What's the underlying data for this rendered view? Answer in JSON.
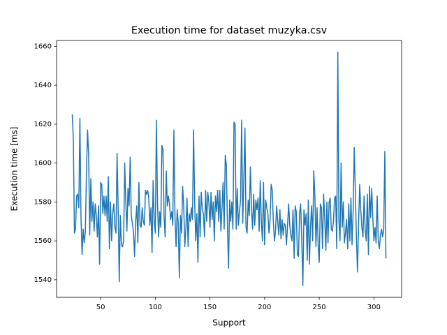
{
  "chart_data": {
    "type": "line",
    "title": "Execution time for dataset muzyka.csv",
    "x_label": "Support",
    "y_label": "Execution time [ms]",
    "color": "#1f77b4",
    "grid": false,
    "xlim": [
      9.65,
      325.35
    ],
    "ylim": [
      1531,
      1663
    ],
    "xticks": [
      50,
      100,
      150,
      200,
      250,
      300
    ],
    "yticks": [
      1540,
      1560,
      1580,
      1600,
      1620,
      1640,
      1660
    ],
    "x": [
      24,
      25,
      26,
      27,
      28,
      29,
      30,
      31,
      32,
      33,
      34,
      35,
      36,
      37,
      38,
      39,
      40,
      41,
      42,
      43,
      44,
      45,
      46,
      47,
      48,
      49,
      50,
      51,
      52,
      53,
      54,
      55,
      56,
      57,
      58,
      59,
      60,
      61,
      62,
      63,
      64,
      65,
      66,
      67,
      68,
      69,
      70,
      71,
      72,
      73,
      74,
      75,
      76,
      77,
      78,
      79,
      80,
      81,
      82,
      83,
      84,
      85,
      86,
      87,
      88,
      89,
      90,
      91,
      92,
      93,
      94,
      95,
      96,
      97,
      98,
      99,
      100,
      101,
      102,
      103,
      104,
      105,
      106,
      107,
      108,
      109,
      110,
      111,
      112,
      113,
      114,
      115,
      116,
      117,
      118,
      119,
      120,
      121,
      122,
      123,
      124,
      125,
      126,
      127,
      128,
      129,
      130,
      131,
      132,
      133,
      134,
      135,
      136,
      137,
      138,
      139,
      140,
      141,
      142,
      143,
      144,
      145,
      146,
      147,
      148,
      149,
      150,
      151,
      152,
      153,
      154,
      155,
      156,
      157,
      158,
      159,
      160,
      161,
      162,
      163,
      164,
      165,
      166,
      167,
      168,
      169,
      170,
      171,
      172,
      173,
      174,
      175,
      176,
      177,
      178,
      179,
      180,
      181,
      182,
      183,
      184,
      185,
      186,
      187,
      188,
      189,
      190,
      191,
      192,
      193,
      194,
      195,
      196,
      197,
      198,
      199,
      200,
      201,
      202,
      203,
      204,
      205,
      206,
      207,
      208,
      209,
      210,
      211,
      212,
      213,
      214,
      215,
      216,
      217,
      218,
      219,
      220,
      221,
      222,
      223,
      224,
      225,
      226,
      227,
      228,
      229,
      230,
      231,
      232,
      233,
      234,
      235,
      236,
      237,
      238,
      239,
      240,
      241,
      242,
      243,
      244,
      245,
      246,
      247,
      248,
      249,
      250,
      251,
      252,
      253,
      254,
      255,
      256,
      257,
      258,
      259,
      260,
      261,
      262,
      263,
      264,
      265,
      266,
      267,
      268,
      269,
      270,
      271,
      272,
      273,
      274,
      275,
      276,
      277,
      278,
      279,
      280,
      281,
      282,
      283,
      284,
      285,
      286,
      287,
      288,
      289,
      290,
      291,
      292,
      293,
      294,
      295,
      296,
      297,
      298,
      299,
      300,
      301,
      302,
      303,
      304,
      305,
      306,
      307,
      308,
      309,
      310,
      311
    ],
    "values": [
      1625,
      1612,
      1564,
      1566,
      1583,
      1584,
      1577,
      1623,
      1572,
      1553,
      1566,
      1559,
      1565,
      1596,
      1617,
      1604,
      1563,
      1592,
      1570,
      1580,
      1565,
      1579,
      1573,
      1562,
      1578,
      1548,
      1590,
      1589,
      1574,
      1583,
      1573,
      1583,
      1570,
      1593,
      1556,
      1580,
      1560,
      1574,
      1579,
      1567,
      1564,
      1605,
      1577,
      1539,
      1573,
      1558,
      1557,
      1560,
      1600,
      1580,
      1565,
      1587,
      1578,
      1603,
      1573,
      1569,
      1565,
      1552,
      1570,
      1578,
      1559,
      1590,
      1568,
      1567,
      1577,
      1570,
      1568,
      1586,
      1584,
      1586,
      1582,
      1568,
      1577,
      1554,
      1591,
      1570,
      1564,
      1622,
      1579,
      1562,
      1575,
      1567,
      1609,
      1607,
      1573,
      1562,
      1596,
      1578,
      1583,
      1579,
      1571,
      1575,
      1568,
      1617,
      1572,
      1557,
      1576,
      1569,
      1541,
      1573,
      1564,
      1588,
      1578,
      1557,
      1567,
      1582,
      1557,
      1574,
      1570,
      1577,
      1571,
      1617,
      1580,
      1560,
      1574,
      1549,
      1583,
      1562,
      1585,
      1576,
      1574,
      1562,
      1586,
      1570,
      1585,
      1580,
      1567,
      1585,
      1571,
      1580,
      1560,
      1583,
      1575,
      1586,
      1570,
      1586,
      1565,
      1577,
      1590,
      1566,
      1604,
      1599,
      1568,
      1546,
      1581,
      1570,
      1580,
      1566,
      1621,
      1620,
      1566,
      1587,
      1568,
      1575,
      1581,
      1622,
      1569,
      1592,
      1618,
      1567,
      1564,
      1581,
      1573,
      1598,
      1577,
      1566,
      1584,
      1568,
      1581,
      1576,
      1582,
      1565,
      1591,
      1570,
      1560,
      1590,
      1558,
      1581,
      1577,
      1574,
      1564,
      1571,
      1589,
      1586,
      1570,
      1560,
      1565,
      1578,
      1570,
      1563,
      1576,
      1561,
      1571,
      1563,
      1569,
      1568,
      1558,
      1568,
      1579,
      1568,
      1563,
      1560,
      1576,
      1551,
      1578,
      1575,
      1553,
      1552,
      1574,
      1579,
      1560,
      1537,
      1576,
      1568,
      1574,
      1550,
      1581,
      1548,
      1567,
      1578,
      1560,
      1596,
      1583,
      1557,
      1577,
      1558,
      1549,
      1579,
      1577,
      1556,
      1584,
      1572,
      1555,
      1580,
      1559,
      1580,
      1582,
      1566,
      1565,
      1570,
      1582,
      1583,
      1556,
      1657,
      1570,
      1560,
      1600,
      1567,
      1580,
      1559,
      1564,
      1571,
      1556,
      1579,
      1560,
      1582,
      1558,
      1575,
      1608,
      1586,
      1562,
      1544,
      1569,
      1589,
      1576,
      1567,
      1562,
      1583,
      1566,
      1560,
      1584,
      1553,
      1588,
      1572,
      1587,
      1572,
      1560,
      1567,
      1559,
      1583,
      1560,
      1556,
      1563,
      1566,
      1562,
      1566,
      1606,
      1551
    ]
  }
}
